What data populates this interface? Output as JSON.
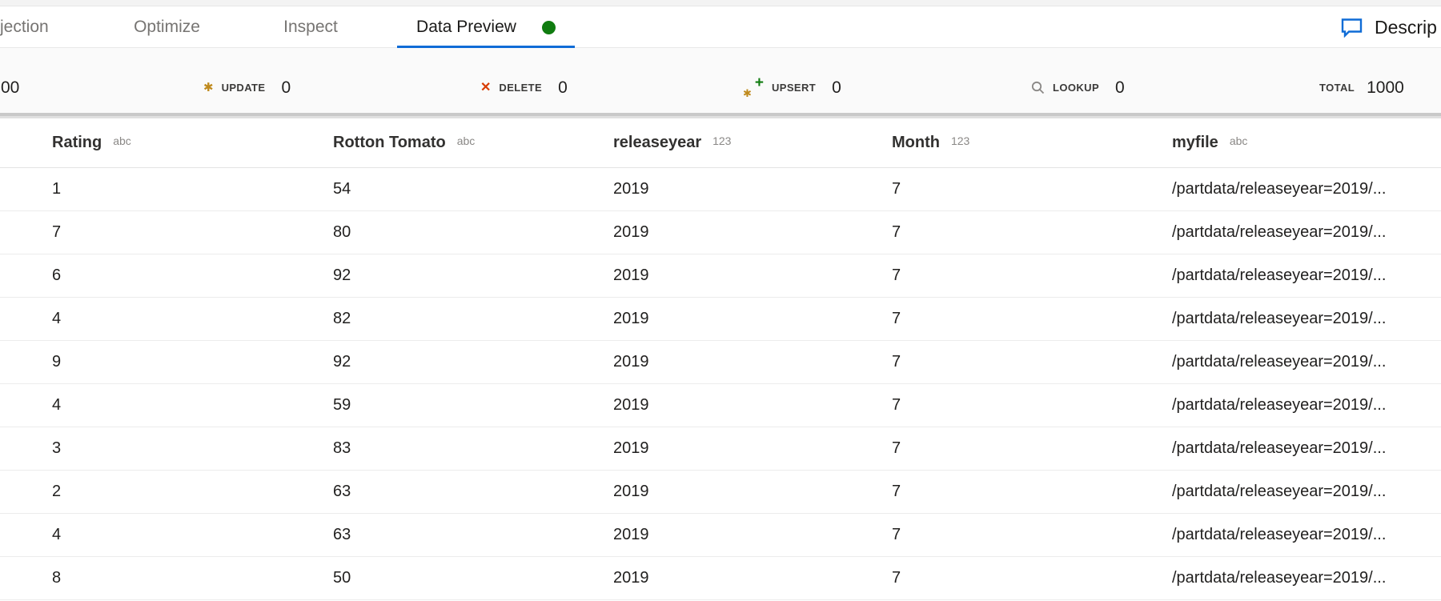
{
  "tabs": {
    "items": [
      {
        "label": "jection",
        "active": false
      },
      {
        "label": "Optimize",
        "active": false
      },
      {
        "label": "Inspect",
        "active": false
      },
      {
        "label": "Data Preview",
        "active": true,
        "status_dot_color": "#107c10"
      }
    ],
    "accent_color": "#0f6cd6",
    "description_button": {
      "label": "Descrip",
      "icon": "comment-icon",
      "icon_color": "#0f6cd6"
    }
  },
  "stats": {
    "insert_partial_value": "00",
    "items": [
      {
        "label": "UPDATE",
        "value": "0",
        "icon": "asterisk-icon",
        "icon_color": "#bf8a1d"
      },
      {
        "label": "DELETE",
        "value": "0",
        "icon": "x-icon",
        "icon_color": "#d83b01"
      },
      {
        "label": "UPSERT",
        "value": "0",
        "icon": "asterisk-plus-icon",
        "icon_color": "#bf8a1d",
        "plus_color": "#107c10"
      },
      {
        "label": "LOOKUP",
        "value": "0",
        "icon": "magnifier-icon",
        "icon_color": "#8a8886"
      }
    ],
    "total": {
      "label": "TOTAL",
      "value": "1000"
    }
  },
  "table": {
    "columns": [
      {
        "name": "Rating",
        "type": "abc"
      },
      {
        "name": "Rotton Tomato",
        "type": "abc"
      },
      {
        "name": "releaseyear",
        "type": "123"
      },
      {
        "name": "Month",
        "type": "123"
      },
      {
        "name": "myfile",
        "type": "abc"
      }
    ],
    "rows": [
      [
        "1",
        "54",
        "2019",
        "7",
        "/partdata/releaseyear=2019/..."
      ],
      [
        "7",
        "80",
        "2019",
        "7",
        "/partdata/releaseyear=2019/..."
      ],
      [
        "6",
        "92",
        "2019",
        "7",
        "/partdata/releaseyear=2019/..."
      ],
      [
        "4",
        "82",
        "2019",
        "7",
        "/partdata/releaseyear=2019/..."
      ],
      [
        "9",
        "92",
        "2019",
        "7",
        "/partdata/releaseyear=2019/..."
      ],
      [
        "4",
        "59",
        "2019",
        "7",
        "/partdata/releaseyear=2019/..."
      ],
      [
        "3",
        "83",
        "2019",
        "7",
        "/partdata/releaseyear=2019/..."
      ],
      [
        "2",
        "63",
        "2019",
        "7",
        "/partdata/releaseyear=2019/..."
      ],
      [
        "4",
        "63",
        "2019",
        "7",
        "/partdata/releaseyear=2019/..."
      ],
      [
        "8",
        "50",
        "2019",
        "7",
        "/partdata/releaseyear=2019/..."
      ]
    ]
  }
}
